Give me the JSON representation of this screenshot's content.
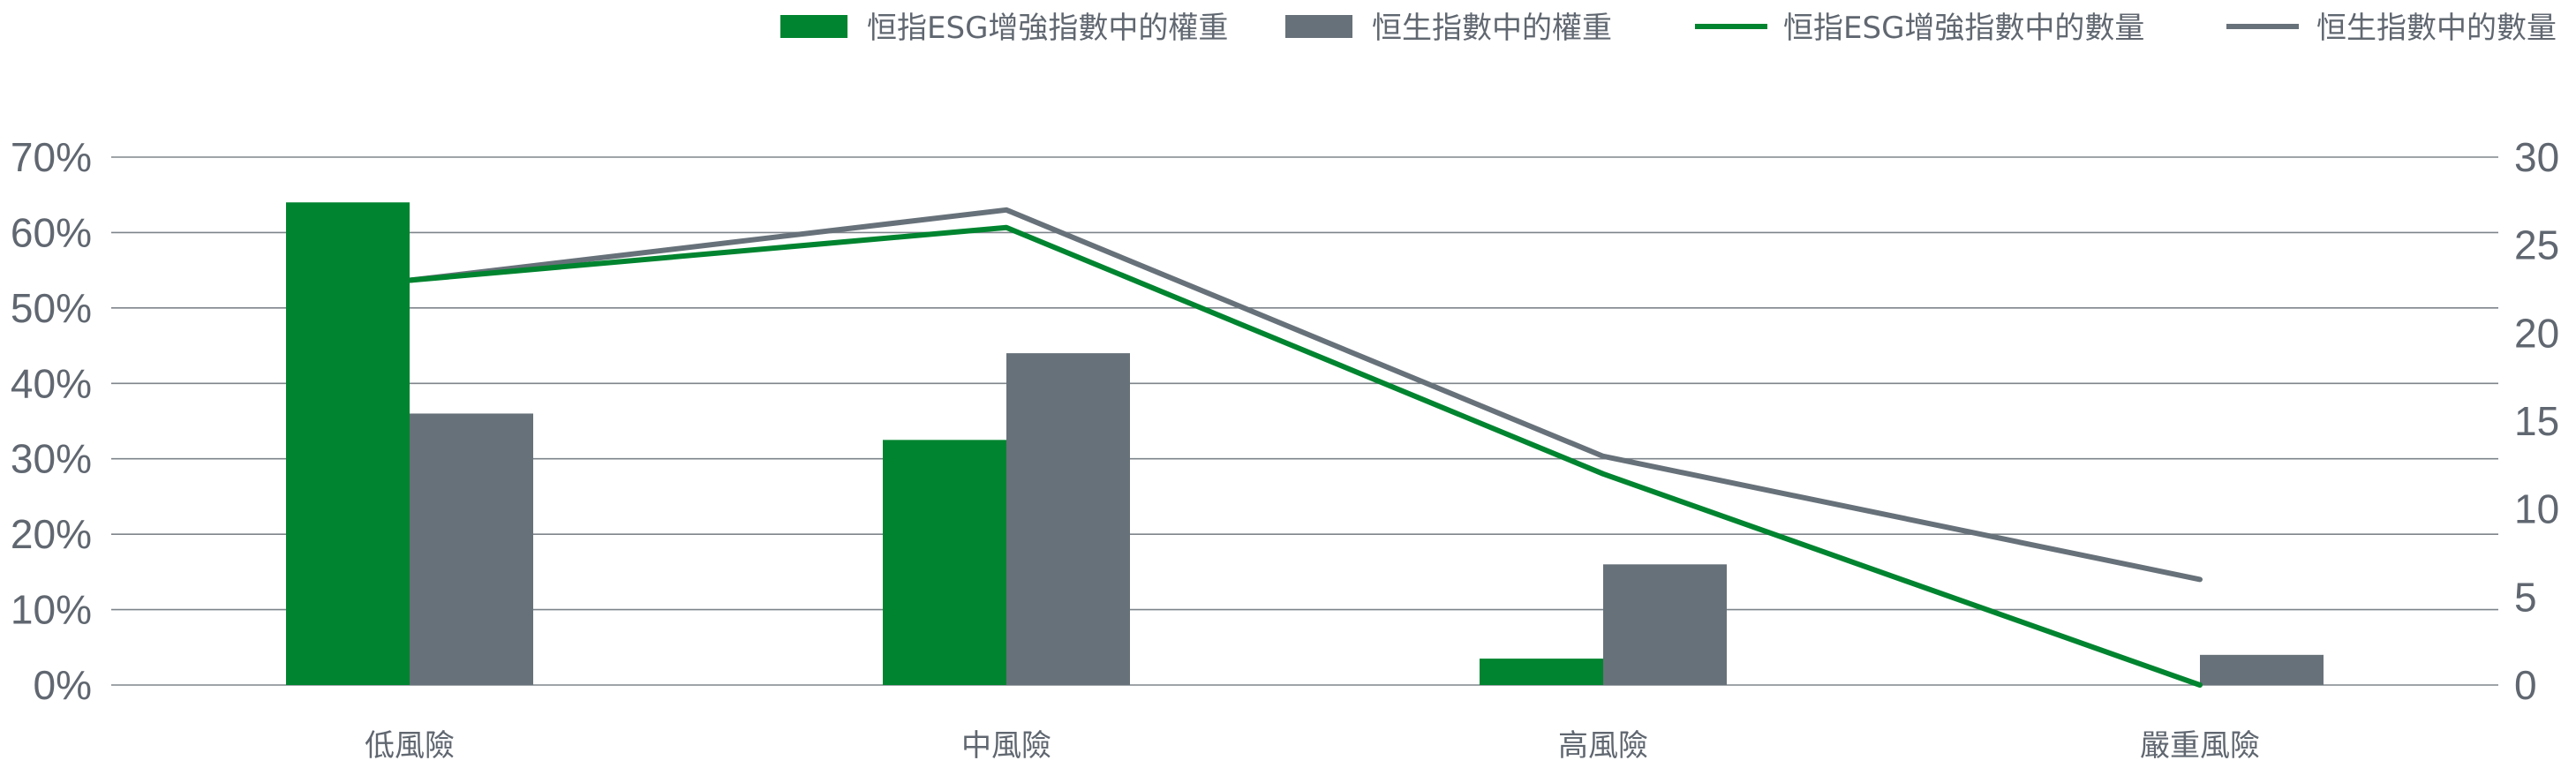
{
  "chart_data": {
    "type": "bar",
    "categories": [
      "低風險",
      "中風險",
      "高風險",
      "嚴重風險"
    ],
    "bar_series": [
      {
        "name": "恒指ESG增強指數中的權重",
        "values": [
          64,
          32.5,
          3.5,
          0
        ],
        "color": "#00842F"
      },
      {
        "name": "恒生指數中的權重",
        "values": [
          36,
          44,
          16,
          4
        ],
        "color": "#677179"
      }
    ],
    "line_series": [
      {
        "name": "恒指ESG增強指數中的數量",
        "values": [
          23,
          26,
          12,
          0
        ],
        "color": "#00842F"
      },
      {
        "name": "恒生指數中的數量",
        "values": [
          23,
          27,
          13,
          6
        ],
        "color": "#677179"
      }
    ],
    "y_left": {
      "min": 0,
      "max": 70,
      "step": 10,
      "suffix": "%"
    },
    "y_right": {
      "min": 0,
      "max": 30,
      "step": 5
    },
    "legend_position": "top-right",
    "grid": true,
    "legend": {
      "items": [
        {
          "label": "恒指ESG增強指數中的權重",
          "kind": "bar",
          "color": "#00842F"
        },
        {
          "label": "恒生指數中的權重",
          "kind": "bar",
          "color": "#677179"
        },
        {
          "label": "恒指ESG增強指數中的數量",
          "kind": "line",
          "color": "#00842F"
        },
        {
          "label": "恒生指數中的數量",
          "kind": "line",
          "color": "#677179"
        }
      ]
    }
  }
}
